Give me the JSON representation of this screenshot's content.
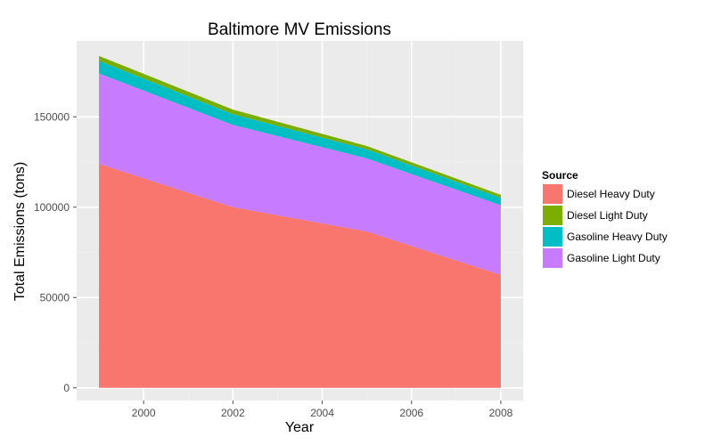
{
  "chart_data": {
    "type": "area",
    "stacked": true,
    "title": "Baltimore MV Emissions",
    "xlabel": "Year",
    "ylabel": "Total Emissions (tons)",
    "x": [
      1999,
      2002,
      2005,
      2008
    ],
    "xlim": [
      1998.5,
      2008.5
    ],
    "ylim": [
      -7000,
      192000
    ],
    "x_ticks": [
      2000,
      2002,
      2004,
      2006,
      2008
    ],
    "x_tick_labels": [
      "2000",
      "2002",
      "2004",
      "2006",
      "2008"
    ],
    "y_ticks": [
      0,
      50000,
      100000,
      150000
    ],
    "y_tick_labels": [
      "0",
      "50000",
      "100000",
      "150000"
    ],
    "grid": true,
    "legend_title": "Source",
    "legend_position": "right",
    "series": [
      {
        "name": "Diesel Heavy Duty",
        "color": "#F8766D",
        "values": [
          124000,
          100000,
          86500,
          62500
        ]
      },
      {
        "name": "Gasoline Light Duty",
        "color": "#C77CFF",
        "values": [
          50000,
          45500,
          40500,
          38500
        ]
      },
      {
        "name": "Gasoline Heavy Duty",
        "color": "#00BFC4",
        "values": [
          7000,
          6000,
          5000,
          4200
        ]
      },
      {
        "name": "Diesel Light Duty",
        "color": "#7CAE00",
        "values": [
          2700,
          2500,
          1800,
          1600
        ]
      }
    ],
    "legend_order": [
      "Diesel Heavy Duty",
      "Diesel Light Duty",
      "Gasoline Heavy Duty",
      "Gasoline Light Duty"
    ]
  }
}
